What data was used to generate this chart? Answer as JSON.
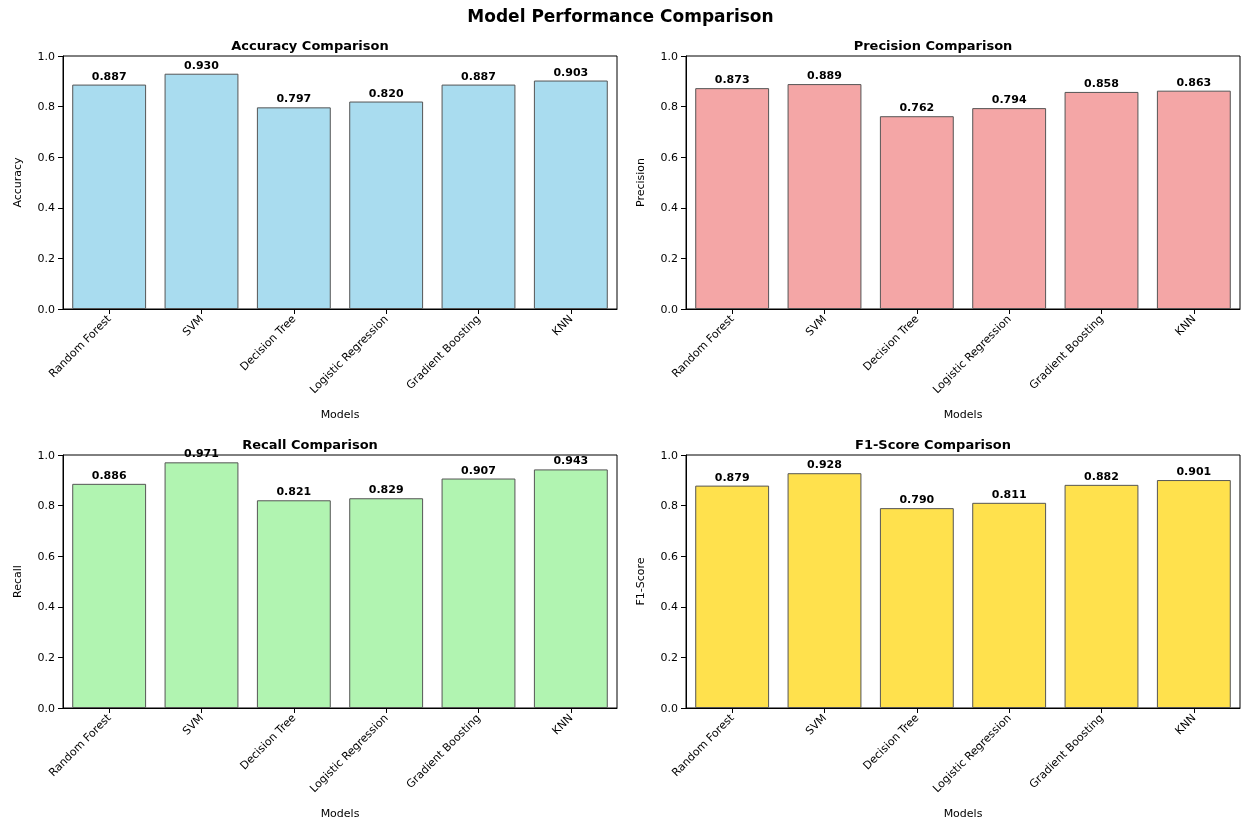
{
  "chart_data": [
    {
      "type": "other",
      "title": "Model Performance Comparison"
    },
    {
      "type": "bar",
      "title": "Accuracy Comparison",
      "xlabel": "Models",
      "ylabel": "Accuracy",
      "categories": [
        "Random Forest",
        "SVM",
        "Decision Tree",
        "Logistic Regression",
        "Gradient Boosting",
        "KNN"
      ],
      "values": [
        0.887,
        0.93,
        0.797,
        0.82,
        0.887,
        0.903
      ],
      "value_labels": [
        "0.887",
        "0.930",
        "0.797",
        "0.820",
        "0.887",
        "0.903"
      ],
      "color": "#a9dcef",
      "ylim": [
        0,
        1
      ],
      "yticks": [
        {
          "value": 0,
          "label": "0.0"
        },
        {
          "value": 0.2,
          "label": "0.2"
        },
        {
          "value": 0.4,
          "label": "0.4"
        },
        {
          "value": 0.6,
          "label": "0.6"
        },
        {
          "value": 0.8,
          "label": "0.8"
        },
        {
          "value": 1,
          "label": "1.0"
        }
      ],
      "grid": false
    },
    {
      "type": "bar",
      "title": "Precision Comparison",
      "xlabel": "Models",
      "ylabel": "Precision",
      "categories": [
        "Random Forest",
        "SVM",
        "Decision Tree",
        "Logistic Regression",
        "Gradient Boosting",
        "KNN"
      ],
      "values": [
        0.873,
        0.889,
        0.762,
        0.794,
        0.858,
        0.863
      ],
      "value_labels": [
        "0.873",
        "0.889",
        "0.762",
        "0.794",
        "0.858",
        "0.863"
      ],
      "color": "#f4a6a6",
      "ylim": [
        0,
        1
      ],
      "yticks": [
        {
          "value": 0,
          "label": "0.0"
        },
        {
          "value": 0.2,
          "label": "0.2"
        },
        {
          "value": 0.4,
          "label": "0.4"
        },
        {
          "value": 0.6,
          "label": "0.6"
        },
        {
          "value": 0.8,
          "label": "0.8"
        },
        {
          "value": 1,
          "label": "1.0"
        }
      ],
      "grid": false
    },
    {
      "type": "bar",
      "title": "Recall Comparison",
      "xlabel": "Models",
      "ylabel": "Recall",
      "categories": [
        "Random Forest",
        "SVM",
        "Decision Tree",
        "Logistic Regression",
        "Gradient Boosting",
        "KNN"
      ],
      "values": [
        0.886,
        0.971,
        0.821,
        0.829,
        0.907,
        0.943
      ],
      "value_labels": [
        "0.886",
        "0.971",
        "0.821",
        "0.829",
        "0.907",
        "0.943"
      ],
      "color": "#b1f4b1",
      "ylim": [
        0,
        1
      ],
      "yticks": [
        {
          "value": 0,
          "label": "0.0"
        },
        {
          "value": 0.2,
          "label": "0.2"
        },
        {
          "value": 0.4,
          "label": "0.4"
        },
        {
          "value": 0.6,
          "label": "0.6"
        },
        {
          "value": 0.8,
          "label": "0.8"
        },
        {
          "value": 1,
          "label": "1.0"
        }
      ],
      "grid": false
    },
    {
      "type": "bar",
      "title": "F1-Score Comparison",
      "xlabel": "Models",
      "ylabel": "F1-Score",
      "categories": [
        "Random Forest",
        "SVM",
        "Decision Tree",
        "Logistic Regression",
        "Gradient Boosting",
        "KNN"
      ],
      "values": [
        0.879,
        0.928,
        0.79,
        0.811,
        0.882,
        0.901
      ],
      "value_labels": [
        "0.879",
        "0.928",
        "0.790",
        "0.811",
        "0.882",
        "0.901"
      ],
      "color": "#ffe14d",
      "ylim": [
        0,
        1
      ],
      "yticks": [
        {
          "value": 0,
          "label": "0.0"
        },
        {
          "value": 0.2,
          "label": "0.2"
        },
        {
          "value": 0.4,
          "label": "0.4"
        },
        {
          "value": 0.6,
          "label": "0.6"
        },
        {
          "value": 0.8,
          "label": "0.8"
        },
        {
          "value": 1,
          "label": "1.0"
        }
      ],
      "grid": false
    }
  ]
}
